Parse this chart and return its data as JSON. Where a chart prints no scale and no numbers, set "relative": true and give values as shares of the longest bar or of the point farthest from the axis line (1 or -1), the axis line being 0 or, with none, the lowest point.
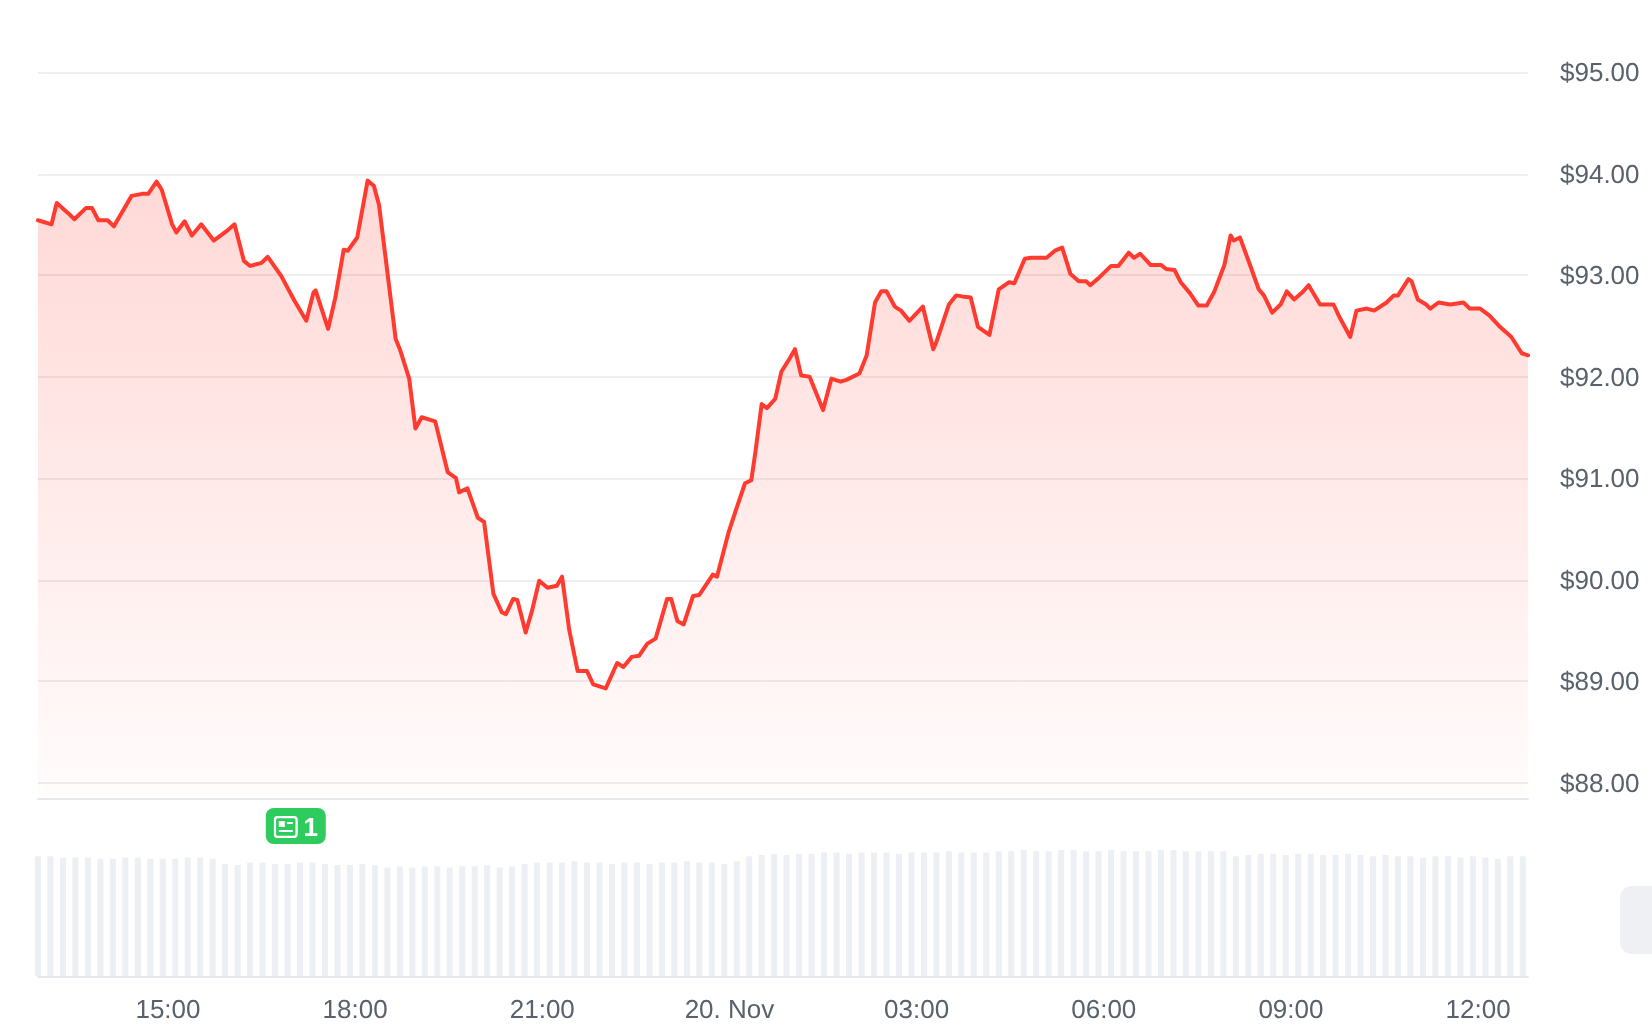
{
  "chart_data": [
    {
      "type": "area",
      "color": "#ff3b30",
      "tick_labels": "y",
      "grid": "y",
      "xlim": [
        "--11-19T12:55",
        "--11-20T12:48"
      ],
      "ylim": [
        87.85,
        95
      ],
      "yticks": [
        {
          "value": 88,
          "label": "$88.00"
        },
        {
          "value": 89,
          "label": "$89.00"
        },
        {
          "value": 90,
          "label": "$90.00"
        },
        {
          "value": 91,
          "label": "$91.00"
        },
        {
          "value": 92,
          "label": "$92.00"
        },
        {
          "value": 93,
          "label": "$93.00"
        },
        {
          "value": 94,
          "label": "$94.00"
        },
        {
          "value": 95,
          "label": "$95.00"
        }
      ],
      "x": [
        "--11-19T12:55",
        "--11-19T13:08",
        "--11-19T13:13",
        "--11-19T13:24",
        "--11-19T13:30",
        "--11-19T13:41",
        "--11-19T13:47",
        "--11-19T13:53",
        "--11-19T14:02",
        "--11-19T14:08",
        "--11-19T14:25",
        "--11-19T14:35",
        "--11-19T14:41",
        "--11-19T14:49",
        "--11-19T14:54",
        "--11-19T15:04",
        "--11-19T15:08",
        "--11-19T15:16",
        "--11-19T15:23",
        "--11-19T15:32",
        "--11-19T15:44",
        "--11-19T15:56",
        "--11-19T16:04",
        "--11-19T16:13",
        "--11-19T16:19",
        "--11-19T16:30",
        "--11-19T16:36",
        "--11-19T16:49",
        "--11-19T17:01",
        "--11-19T17:13",
        "--11-19T17:20",
        "--11-19T17:22",
        "--11-19T17:34",
        "--11-19T17:41",
        "--11-19T17:49",
        "--11-19T17:53",
        "--11-19T18:02",
        "--11-19T18:12",
        "--11-19T18:18",
        "--11-19T18:23",
        "--11-19T18:39",
        "--11-19T18:43",
        "--11-19T18:52",
        "--11-19T18:58",
        "--11-19T19:04",
        "--11-19T19:17",
        "--11-19T19:29",
        "--11-19T19:37",
        "--11-19T19:40",
        "--11-19T19:48",
        "--11-19T19:58",
        "--11-19T20:04",
        "--11-19T20:13",
        "--11-19T20:21",
        "--11-19T20:25",
        "--11-19T20:32",
        "--11-19T20:36",
        "--11-19T20:44",
        "--11-19T20:50",
        "--11-19T20:57",
        "--11-19T21:05",
        "--11-19T21:14",
        "--11-19T21:19",
        "--11-19T21:26",
        "--11-19T21:34",
        "--11-19T21:43",
        "--11-19T21:49",
        "--11-19T22:01",
        "--11-19T22:12",
        "--11-19T22:18",
        "--11-19T22:26",
        "--11-19T22:33",
        "--11-19T22:41",
        "--11-19T22:49",
        "--11-19T23:00",
        "--11-19T23:04",
        "--11-19T23:10",
        "--11-19T23:16",
        "--11-19T23:25",
        "--11-19T23:31",
        "--11-19T23:44",
        "--11-19T23:48",
        "--11-19T23:59",
        "--11-20T00:07",
        "--11-20T00:15",
        "--11-20T00:21",
        "--11-20T00:25",
        "--11-20T00:31",
        "--11-20T00:36",
        "--11-20T00:44",
        "--11-20T00:50",
        "--11-20T00:58",
        "--11-20T01:03",
        "--11-20T01:09",
        "--11-20T01:17",
        "--11-20T01:30",
        "--11-20T01:38",
        "--11-20T01:47",
        "--11-20T01:53",
        "--11-20T02:05",
        "--11-20T02:12",
        "--11-20T02:20",
        "--11-20T02:26",
        "--11-20T02:31",
        "--11-20T02:39",
        "--11-20T02:45",
        "--11-20T02:53",
        "--11-20T03:06",
        "--11-20T03:16",
        "--11-20T03:19",
        "--11-20T03:31",
        "--11-20T03:38",
        "--11-20T03:44",
        "--11-20T03:52",
        "--11-20T03:59",
        "--11-20T04:10",
        "--11-20T04:19",
        "--11-20T04:29",
        "--11-20T04:34",
        "--11-20T04:44",
        "--11-20T04:50",
        "--11-20T05:05",
        "--11-20T05:13",
        "--11-20T05:20",
        "--11-20T05:28",
        "--11-20T05:36",
        "--11-20T05:43",
        "--11-20T05:47",
        "--11-20T05:55",
        "--11-20T06:07",
        "--11-20T06:14",
        "--11-20T06:24",
        "--11-20T06:29",
        "--11-20T06:35",
        "--11-20T06:45",
        "--11-20T06:55",
        "--11-20T07:00",
        "--11-20T07:08",
        "--11-20T07:14",
        "--11-20T07:23",
        "--11-20T07:31",
        "--11-20T07:39",
        "--11-20T07:46",
        "--11-20T07:56",
        "--11-20T08:02",
        "--11-20T08:05",
        "--11-20T08:11",
        "--11-20T08:21",
        "--11-20T08:29",
        "--11-20T08:34",
        "--11-20T08:42",
        "--11-20T08:50",
        "--11-20T08:56",
        "--11-20T09:03",
        "--11-20T09:11",
        "--11-20T09:17",
        "--11-20T09:28",
        "--11-20T09:41",
        "--11-20T09:46",
        "--11-20T09:57",
        "--11-20T10:03",
        "--11-20T10:13",
        "--11-20T10:20",
        "--11-20T10:32",
        "--11-20T10:39",
        "--11-20T10:43",
        "--11-20T10:53",
        "--11-20T10:56",
        "--11-20T11:02",
        "--11-20T11:10",
        "--11-20T11:14",
        "--11-20T11:22",
        "--11-20T11:33",
        "--11-20T11:46",
        "--11-20T11:52",
        "--11-20T12:02",
        "--11-20T12:11",
        "--11-20T12:21",
        "--11-20T12:32",
        "--11-20T12:42",
        "--11-20T12:48"
      ],
      "values": [
        93.54,
        93.5,
        93.71,
        93.61,
        93.55,
        93.66,
        93.66,
        93.54,
        93.54,
        93.48,
        93.78,
        93.8,
        93.8,
        93.92,
        93.84,
        93.5,
        93.42,
        93.53,
        93.39,
        93.5,
        93.34,
        93.43,
        93.5,
        93.14,
        93.09,
        93.12,
        93.18,
        92.99,
        92.76,
        92.55,
        92.83,
        92.85,
        92.47,
        92.78,
        93.25,
        93.24,
        93.37,
        93.93,
        93.88,
        93.69,
        92.37,
        92.27,
        91.98,
        91.49,
        91.6,
        91.56,
        91.06,
        91.0,
        90.86,
        90.9,
        90.61,
        90.57,
        89.86,
        89.68,
        89.66,
        89.81,
        89.8,
        89.48,
        89.69,
        89.99,
        89.92,
        89.94,
        90.03,
        89.5,
        89.1,
        89.1,
        88.97,
        88.93,
        89.18,
        89.14,
        89.24,
        89.25,
        89.37,
        89.42,
        89.81,
        89.81,
        89.59,
        89.56,
        89.84,
        89.85,
        90.05,
        90.03,
        90.46,
        90.71,
        90.95,
        90.98,
        91.26,
        91.73,
        91.69,
        91.78,
        92.05,
        92.18,
        92.27,
        92.01,
        92.0,
        91.67,
        91.98,
        91.95,
        91.97,
        92.03,
        92.21,
        92.73,
        92.84,
        92.84,
        92.69,
        92.65,
        92.55,
        92.69,
        92.27,
        92.34,
        92.71,
        92.8,
        92.79,
        92.78,
        92.49,
        92.41,
        92.86,
        92.93,
        92.92,
        93.16,
        93.17,
        93.17,
        93.24,
        93.27,
        93.01,
        92.94,
        92.94,
        92.9,
        92.97,
        93.09,
        93.09,
        93.22,
        93.17,
        93.21,
        93.1,
        93.1,
        93.06,
        93.05,
        92.93,
        92.82,
        92.7,
        92.7,
        92.83,
        93.1,
        93.39,
        93.34,
        93.37,
        93.09,
        92.86,
        92.8,
        92.63,
        92.71,
        92.84,
        92.76,
        92.83,
        92.9,
        92.71,
        92.71,
        92.6,
        92.39,
        92.65,
        92.67,
        92.65,
        92.73,
        92.8,
        92.8,
        92.96,
        92.94,
        92.76,
        92.71,
        92.67,
        92.73,
        92.71,
        92.73,
        92.67,
        92.67,
        92.6,
        92.49,
        92.39,
        92.23,
        92.21
      ]
    },
    {
      "type": "bar",
      "color": "#eceff3",
      "relative": true,
      "tick_labels": "x",
      "xlim": [
        "--11-19T12:55",
        "--11-20T12:48"
      ],
      "xticks": [
        {
          "value": "--11-19T15:00",
          "label": "15:00"
        },
        {
          "value": "--11-19T18:00",
          "label": "18:00"
        },
        {
          "value": "--11-19T21:00",
          "label": "21:00"
        },
        {
          "value": "--11-20T00:00",
          "label": "20. Nov"
        },
        {
          "value": "--11-20T03:00",
          "label": "03:00"
        },
        {
          "value": "--11-20T06:00",
          "label": "06:00"
        },
        {
          "value": "--11-20T09:00",
          "label": "09:00"
        },
        {
          "value": "--11-20T12:00",
          "label": "12:00"
        }
      ],
      "annotations": [
        {
          "text": "1",
          "x": "--11-19T17:03"
        }
      ],
      "x": [
        "--11-19T12:55",
        "--11-19T13:07",
        "--11-19T13:19",
        "--11-19T13:31",
        "--11-19T13:43",
        "--11-19T13:55",
        "--11-19T14:07",
        "--11-19T14:19",
        "--11-19T14:31",
        "--11-19T14:43",
        "--11-19T14:55",
        "--11-19T15:07",
        "--11-19T15:19",
        "--11-19T15:31",
        "--11-19T15:43",
        "--11-19T15:55",
        "--11-19T16:07",
        "--11-19T16:19",
        "--11-19T16:31",
        "--11-19T16:43",
        "--11-19T16:55",
        "--11-19T17:07",
        "--11-19T17:19",
        "--11-19T17:31",
        "--11-19T17:43",
        "--11-19T17:55",
        "--11-19T18:07",
        "--11-19T18:19",
        "--11-19T18:31",
        "--11-19T18:43",
        "--11-19T18:55",
        "--11-19T19:07",
        "--11-19T19:19",
        "--11-19T19:31",
        "--11-19T19:43",
        "--11-19T19:55",
        "--11-19T20:07",
        "--11-19T20:19",
        "--11-19T20:31",
        "--11-19T20:43",
        "--11-19T20:55",
        "--11-19T21:07",
        "--11-19T21:19",
        "--11-19T21:31",
        "--11-19T21:43",
        "--11-19T21:55",
        "--11-19T22:07",
        "--11-19T22:19",
        "--11-19T22:31",
        "--11-19T22:43",
        "--11-19T22:55",
        "--11-19T23:07",
        "--11-19T23:19",
        "--11-19T23:31",
        "--11-19T23:43",
        "--11-19T23:55",
        "--11-20T00:07",
        "--11-20T00:19",
        "--11-20T00:31",
        "--11-20T00:43",
        "--11-20T00:55",
        "--11-20T01:07",
        "--11-20T01:19",
        "--11-20T01:31",
        "--11-20T01:43",
        "--11-20T01:55",
        "--11-20T02:07",
        "--11-20T02:19",
        "--11-20T02:31",
        "--11-20T02:43",
        "--11-20T02:55",
        "--11-20T03:07",
        "--11-20T03:19",
        "--11-20T03:31",
        "--11-20T03:43",
        "--11-20T03:55",
        "--11-20T04:07",
        "--11-20T04:19",
        "--11-20T04:31",
        "--11-20T04:43",
        "--11-20T04:55",
        "--11-20T05:07",
        "--11-20T05:19",
        "--11-20T05:31",
        "--11-20T05:43",
        "--11-20T05:55",
        "--11-20T06:07",
        "--11-20T06:19",
        "--11-20T06:31",
        "--11-20T06:43",
        "--11-20T06:55",
        "--11-20T07:07",
        "--11-20T07:19",
        "--11-20T07:31",
        "--11-20T07:43",
        "--11-20T07:55",
        "--11-20T08:07",
        "--11-20T08:19",
        "--11-20T08:31",
        "--11-20T08:43",
        "--11-20T08:55",
        "--11-20T09:07",
        "--11-20T09:19",
        "--11-20T09:31",
        "--11-20T09:43",
        "--11-20T09:55",
        "--11-20T10:07",
        "--11-20T10:19",
        "--11-20T10:31",
        "--11-20T10:43",
        "--11-20T10:55",
        "--11-20T11:07",
        "--11-20T11:19",
        "--11-20T11:31",
        "--11-20T11:43",
        "--11-20T11:55",
        "--11-20T12:07",
        "--11-20T12:19",
        "--11-20T12:31",
        "--11-20T12:43"
      ],
      "values": [
        0.95,
        0.95,
        0.94,
        0.94,
        0.94,
        0.93,
        0.93,
        0.94,
        0.94,
        0.93,
        0.93,
        0.93,
        0.94,
        0.94,
        0.93,
        0.89,
        0.88,
        0.9,
        0.9,
        0.89,
        0.89,
        0.9,
        0.9,
        0.89,
        0.88,
        0.88,
        0.89,
        0.88,
        0.86,
        0.87,
        0.86,
        0.87,
        0.87,
        0.86,
        0.87,
        0.87,
        0.88,
        0.86,
        0.87,
        0.89,
        0.9,
        0.9,
        0.9,
        0.91,
        0.9,
        0.9,
        0.89,
        0.9,
        0.9,
        0.89,
        0.9,
        0.9,
        0.91,
        0.9,
        0.9,
        0.89,
        0.91,
        0.95,
        0.96,
        0.97,
        0.96,
        0.97,
        0.97,
        0.98,
        0.98,
        0.97,
        0.98,
        0.98,
        0.98,
        0.97,
        0.98,
        0.98,
        0.98,
        0.99,
        0.98,
        0.98,
        0.98,
        0.99,
        0.99,
        1,
        0.99,
        0.99,
        1,
        1,
        0.99,
        0.99,
        1,
        0.99,
        0.99,
        0.99,
        1,
        1,
        0.99,
        0.99,
        0.99,
        0.99,
        0.95,
        0.96,
        0.97,
        0.97,
        0.96,
        0.97,
        0.97,
        0.96,
        0.96,
        0.97,
        0.96,
        0.95,
        0.96,
        0.95,
        0.95,
        0.94,
        0.95,
        0.95,
        0.94,
        0.95,
        0.94,
        0.93,
        0.95,
        0.95
      ]
    }
  ]
}
